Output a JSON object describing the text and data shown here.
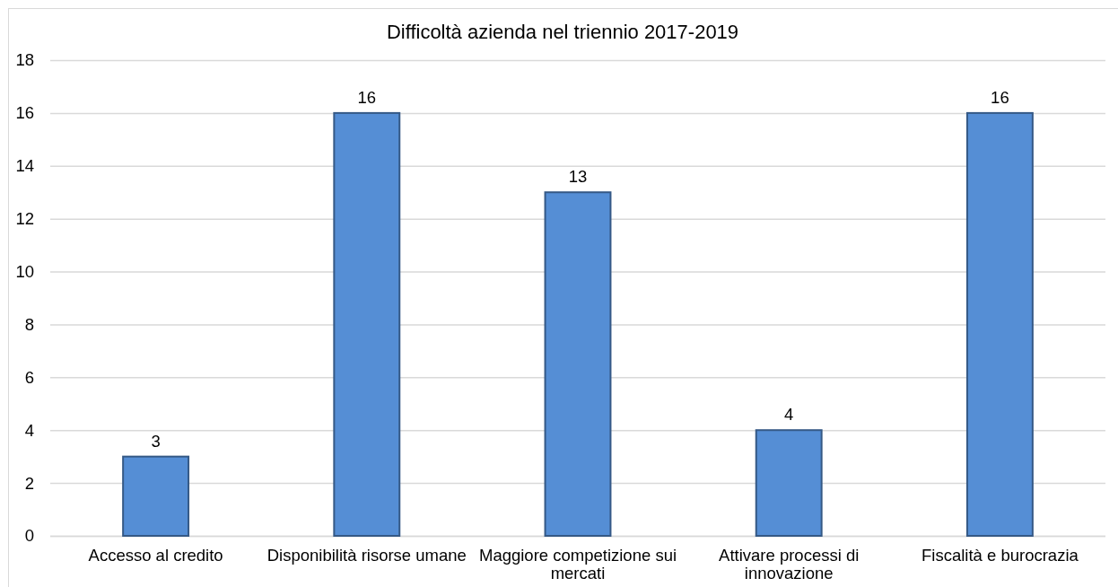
{
  "chart_data": {
    "type": "bar",
    "title": "Difficoltà azienda nel triennio 2017-2019",
    "categories": [
      "Accesso al credito",
      "Disponibilità risorse umane",
      "Maggiore competizione sui mercati",
      "Attivare processi di innovazione",
      "Fiscalità e burocrazia"
    ],
    "values": [
      3,
      16,
      13,
      4,
      16
    ],
    "color": "#558ed5",
    "ylim": [
      0,
      18
    ],
    "yticks": [
      0,
      2,
      4,
      6,
      8,
      10,
      12,
      14,
      16,
      18
    ],
    "grid": "y",
    "data_labels": true
  }
}
